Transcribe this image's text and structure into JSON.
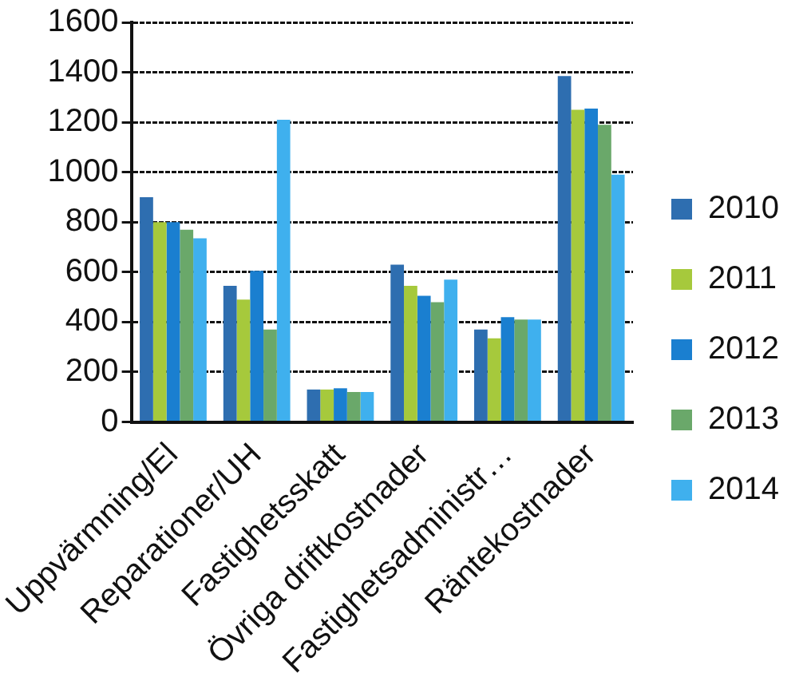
{
  "chart_data": {
    "type": "bar",
    "categories": [
      "Uppvärmning/El",
      "Reparationer/UH",
      "Fastighetsskatt",
      "Övriga driftkostnader",
      "Fastighetsadministr…",
      "Räntekostnader"
    ],
    "series": [
      {
        "name": "2010",
        "color": "#2e6eb0",
        "values": [
          900,
          545,
          130,
          630,
          370,
          1385
        ]
      },
      {
        "name": "2011",
        "color": "#a6c93c",
        "values": [
          800,
          490,
          130,
          545,
          335,
          1250
        ]
      },
      {
        "name": "2012",
        "color": "#1a7fd0",
        "values": [
          800,
          605,
          135,
          505,
          420,
          1255
        ]
      },
      {
        "name": "2013",
        "color": "#6aa86a",
        "values": [
          770,
          370,
          120,
          480,
          410,
          1190
        ]
      },
      {
        "name": "2014",
        "color": "#3fb0ee",
        "values": [
          735,
          1210,
          120,
          570,
          410,
          990
        ]
      }
    ],
    "ylim": [
      0,
      1600
    ],
    "yticks": [
      0,
      200,
      400,
      600,
      800,
      1000,
      1200,
      1400,
      1600
    ],
    "grid": "y",
    "legend": "right"
  }
}
